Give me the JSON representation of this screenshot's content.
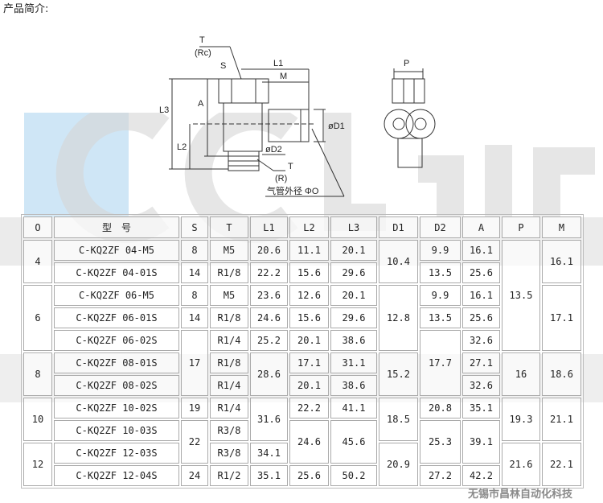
{
  "intro": "产品简介:",
  "watermark": {
    "logo": "CCLair",
    "cn": "昌林自动化"
  },
  "footer": "无锡市昌林自动化科技",
  "drawing": {
    "labels": [
      "T",
      "(Rc)",
      "S",
      "L1",
      "M",
      "A",
      "L3",
      "L2",
      "øD1",
      "øD2",
      "T",
      "(R)",
      "P"
    ],
    "tube_label": "气管外径 ΦO"
  },
  "table": {
    "headers": [
      "O",
      "型　号",
      "S",
      "T",
      "L1",
      "L2",
      "L3",
      "D1",
      "D2",
      "A",
      "P",
      "M"
    ],
    "rows": [
      [
        "4",
        "C-KQ2ZF 04-M5",
        "8",
        "M5",
        "20.6",
        "11.1",
        "20.1",
        "10.4",
        "9.9",
        "16.1",
        "13.5",
        "16.1"
      ],
      [
        null,
        "C-KQ2ZF 04-01S",
        "14",
        "R1/8",
        "22.2",
        "15.6",
        "29.6",
        null,
        "13.5",
        "25.6",
        null,
        null
      ],
      [
        "6",
        "C-KQ2ZF 06-M5",
        "8",
        "M5",
        "23.6",
        "12.6",
        "20.1",
        "12.8",
        "9.9",
        "16.1",
        null,
        "17.1"
      ],
      [
        null,
        "C-KQ2ZF 06-01S",
        "14",
        "R1/8",
        "24.6",
        "15.6",
        "29.6",
        null,
        "13.5",
        "25.6",
        null,
        null
      ],
      [
        null,
        "C-KQ2ZF 06-02S",
        "17",
        "R1/4",
        "25.2",
        "20.1",
        "38.6",
        null,
        "17.7",
        "32.6",
        null,
        null
      ],
      [
        "8",
        "C-KQ2ZF 08-01S",
        null,
        "R1/8",
        "28.6",
        "17.1",
        "31.1",
        "15.2",
        null,
        "27.1",
        "16",
        "18.6"
      ],
      [
        null,
        "C-KQ2ZF 08-02S",
        null,
        "R1/4",
        null,
        "20.1",
        "38.6",
        null,
        null,
        "32.6",
        null,
        null
      ],
      [
        "10",
        "C-KQ2ZF 10-02S",
        "19",
        "R1/4",
        "31.6",
        "22.2",
        "41.1",
        "18.5",
        "20.8",
        "35.1",
        "19.3",
        "21.1"
      ],
      [
        null,
        "C-KQ2ZF 10-03S",
        "22",
        "R3/8",
        null,
        "24.6",
        "45.6",
        null,
        "25.3",
        "39.1",
        null,
        null
      ],
      [
        "12",
        "C-KQ2ZF 12-03S",
        null,
        "R3/8",
        "34.1",
        null,
        null,
        "20.9",
        null,
        null,
        "21.6",
        "22.1"
      ],
      [
        null,
        "C-KQ2ZF 12-04S",
        "24",
        "R1/2",
        "35.1",
        "25.6",
        "50.2",
        null,
        "27.2",
        "42.2",
        null,
        null
      ]
    ]
  }
}
